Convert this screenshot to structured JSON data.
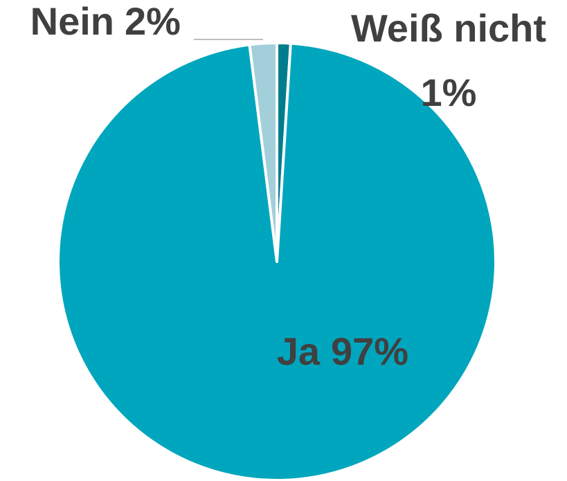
{
  "chart_data": {
    "type": "pie",
    "categories": [
      "Weiß nicht",
      "Ja",
      "Nein"
    ],
    "values": [
      1,
      97,
      2
    ],
    "value_labels": [
      "1%",
      "97%",
      "2%"
    ],
    "colors": [
      "#007d8c",
      "#00a6bd",
      "#a3cfdb"
    ]
  }
}
